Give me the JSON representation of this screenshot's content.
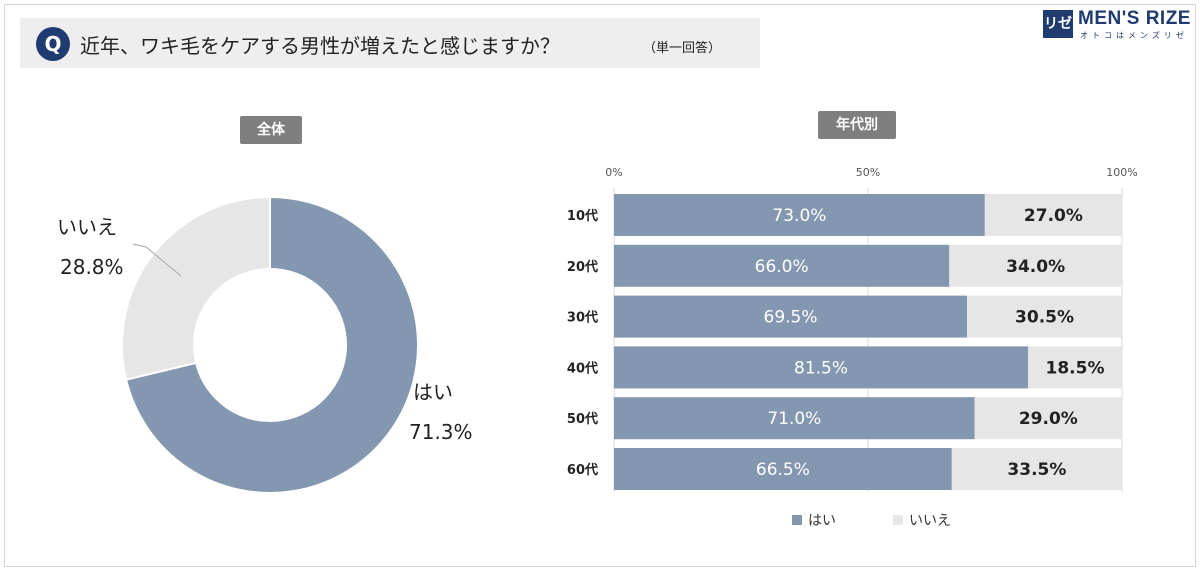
{
  "question": {
    "badge": "Q",
    "text": "近年、ワキ毛をケアする男性が増えたと感じますか？",
    "note": "（単一回答）"
  },
  "logo": {
    "mark": "リゼ",
    "name": "MEN'S RIZE",
    "tagline": "オトコはメンズリゼ"
  },
  "colors": {
    "yes": "#8497b0",
    "no": "#e7e6e6",
    "accent": "#1f3b70"
  },
  "chart_data": [
    {
      "type": "pie",
      "title": "全体",
      "donut": true,
      "slices": [
        {
          "name": "はい",
          "value": 71.3,
          "label": "71.3%"
        },
        {
          "name": "いいえ",
          "value": 28.8,
          "label": "28.8%"
        }
      ]
    },
    {
      "type": "bar",
      "orientation": "horizontal",
      "stacked": true,
      "title": "年代別",
      "categories": [
        "10代",
        "20代",
        "30代",
        "40代",
        "50代",
        "60代"
      ],
      "xticks": [
        "0%",
        "50%",
        "100%"
      ],
      "xlim": [
        0,
        100
      ],
      "grid": true,
      "legend_position": "bottom",
      "series": [
        {
          "name": "はい",
          "values": [
            73.0,
            66.0,
            69.5,
            81.5,
            71.0,
            66.5
          ],
          "labels": [
            "73.0%",
            "66.0%",
            "69.5%",
            "81.5%",
            "71.0%",
            "66.5%"
          ]
        },
        {
          "name": "いいえ",
          "values": [
            27.0,
            34.0,
            30.5,
            18.5,
            29.0,
            33.5
          ],
          "labels": [
            "27.0%",
            "34.0%",
            "30.5%",
            "18.5%",
            "29.0%",
            "33.5%"
          ]
        }
      ]
    }
  ]
}
